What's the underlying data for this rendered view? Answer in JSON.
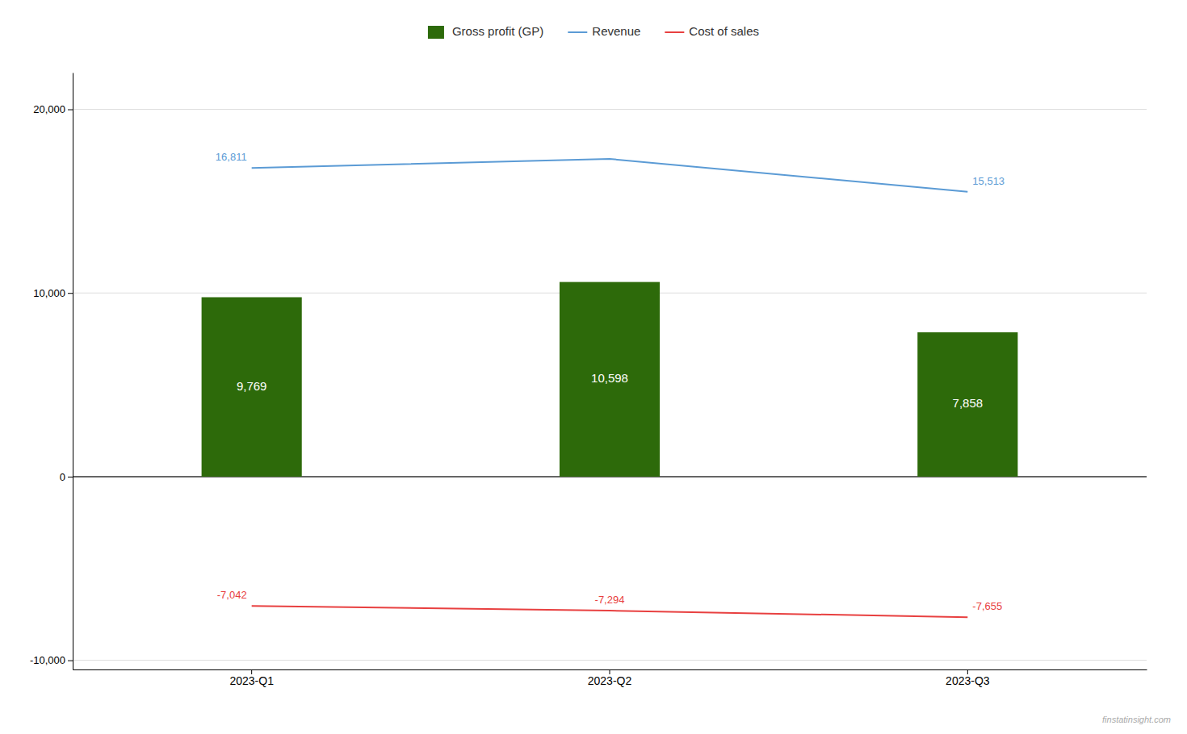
{
  "chart_data": {
    "type": "bar",
    "categories": [
      "2023-Q1",
      "2023-Q2",
      "2023-Q3"
    ],
    "series": [
      {
        "name": "Gross profit (GP)",
        "type": "bar",
        "color": "#2d6a0a",
        "values": [
          9769,
          10598,
          7858
        ],
        "value_labels": [
          "9,769",
          "10,598",
          "7,858"
        ]
      },
      {
        "name": "Revenue",
        "type": "line",
        "color": "#5b9bd5",
        "values": [
          16811,
          17300,
          15513
        ],
        "value_labels": [
          "16,811",
          null,
          "15,513"
        ]
      },
      {
        "name": "Cost of sales",
        "type": "line",
        "color": "#e84040",
        "values": [
          -7042,
          -7294,
          -7655
        ],
        "value_labels": [
          "-7,042",
          "-7,294",
          "-7,655"
        ]
      }
    ],
    "ylim": [
      -10500,
      22000
    ],
    "yticks": [
      {
        "value": -10000,
        "label": "-10,000"
      },
      0,
      {
        "value": 10000,
        "label": "10,000"
      },
      {
        "value": 20000,
        "label": "20,000"
      }
    ],
    "grid": true,
    "legend": "top",
    "data_labels": true,
    "annotations": [
      "finstatinsight.com"
    ]
  }
}
